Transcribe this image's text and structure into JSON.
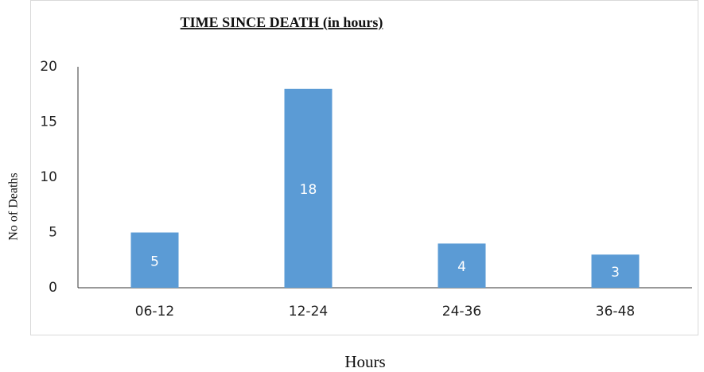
{
  "chart_data": {
    "type": "bar",
    "title": "TIME SINCE DEATH (in hours)",
    "x_label": "Hours",
    "y_label": "No of Deaths",
    "categories": [
      "06-12",
      "12-24",
      "24-36",
      "36-48"
    ],
    "values": [
      5,
      18,
      4,
      3
    ],
    "color": "#5b9bd5",
    "ylim": [
      0,
      20
    ],
    "yticks": [
      0,
      5,
      10,
      15,
      20
    ],
    "grid": false
  }
}
